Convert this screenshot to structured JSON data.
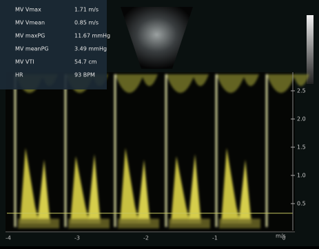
{
  "panel": {
    "rows": [
      {
        "label": "MV Vmax",
        "value": "1.71 m/s"
      },
      {
        "label": "MV Vmean",
        "value": "0.85 m/s"
      },
      {
        "label": "MV maxPG",
        "value": "11.67 mmHg"
      },
      {
        "label": "MV meanPG",
        "value": "3.49 mmHg"
      },
      {
        "label": "MV VTI",
        "value": "54.7 cm"
      },
      {
        "label": "HR",
        "value": "93 BPM"
      }
    ]
  },
  "scale": {
    "labels": [
      "2.5",
      "2.0",
      "1.5",
      "1.0",
      "0.5"
    ],
    "unit": "m/s"
  },
  "time_axis": {
    "labels": [
      "-4",
      "-3",
      "-2",
      "-1",
      "0"
    ]
  }
}
